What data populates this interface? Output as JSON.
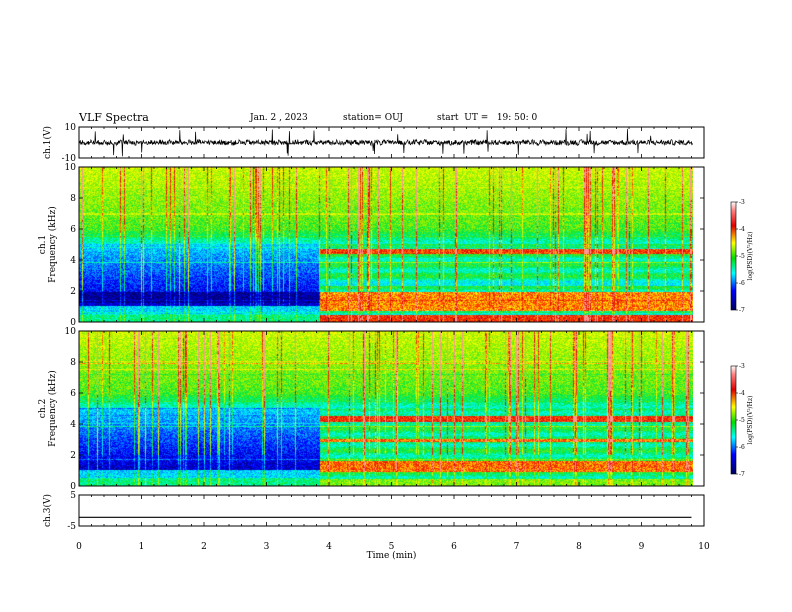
{
  "header": {
    "title": "VLF Spectra",
    "date": "Jan. 2 , 2023",
    "station": "station= OUJ",
    "start": "start  UT =   19: 50: 0"
  },
  "chart_data": [
    {
      "type": "line",
      "panel": "ch1-waveform",
      "ylabel": "ch.1(V)",
      "ylim": [
        -10,
        10
      ],
      "yticks": [
        "10",
        "-10"
      ],
      "xlim": [
        0,
        10
      ],
      "signal": "noisy waveform around 0 V",
      "color": "#000000"
    },
    {
      "type": "heatmap",
      "panel": "ch1-spectrogram",
      "ylabel": "ch.1\nFrequency (kHz)",
      "ylim": [
        0,
        10
      ],
      "yticks": [
        "0",
        "2",
        "4",
        "6",
        "8",
        "10"
      ],
      "xlim": [
        0,
        10
      ],
      "colorbar": {
        "label": "log(PSD)(V²/Hz)",
        "range": [
          -7,
          -3
        ],
        "ticks": [
          "-3",
          "-4",
          "-5",
          "-6",
          "-7"
        ]
      },
      "transition_time_min": 3.85
    },
    {
      "type": "heatmap",
      "panel": "ch2-spectrogram",
      "ylabel": "ch.2\nFrequency (kHz)",
      "ylim": [
        0,
        10
      ],
      "yticks": [
        "0",
        "2",
        "4",
        "6",
        "8",
        "10"
      ],
      "xlim": [
        0,
        10
      ],
      "colorbar": {
        "label": "log(PSD)(V²/Hz)",
        "range": [
          -7,
          -3
        ],
        "ticks": [
          "-3",
          "-4",
          "-5",
          "-6",
          "-7"
        ]
      },
      "transition_time_min": 3.85
    },
    {
      "type": "line",
      "panel": "ch3-waveform",
      "ylabel": "ch.3(V)",
      "ylim": [
        -5,
        5
      ],
      "yticks": [
        "5",
        "-5"
      ],
      "xlim": [
        0,
        10
      ],
      "x": [
        0,
        9.8
      ],
      "y": [
        -2.2,
        -2.2
      ],
      "color": "#000000"
    }
  ],
  "xaxis": {
    "label": "Time (min)",
    "ticks": [
      "0",
      "1",
      "2",
      "3",
      "4",
      "5",
      "6",
      "7",
      "8",
      "9",
      "10"
    ]
  }
}
